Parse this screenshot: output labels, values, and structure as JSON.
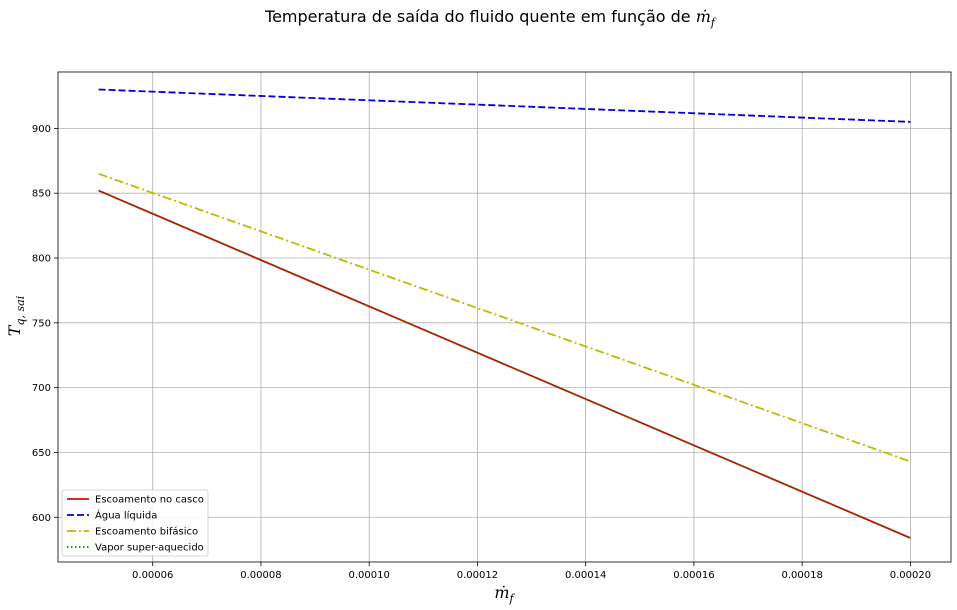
{
  "chart_data": {
    "type": "line",
    "title": "Temperatura de saída do fluido quente em função de",
    "title_math": "ṁ",
    "title_math_sub": "f",
    "xlabel_main": "ṁ",
    "xlabel_sub": "f",
    "ylabel_main": "T",
    "ylabel_sub": "q, sai",
    "xlim": [
      4.25e-05,
      0.0002075
    ],
    "ylim": [
      565.5,
      943.5
    ],
    "xticks": [
      6e-05,
      8e-05,
      0.0001,
      0.00012,
      0.00014,
      0.00016,
      0.00018,
      0.0002
    ],
    "xtick_labels": [
      "0.00006",
      "0.00008",
      "0.00010",
      "0.00012",
      "0.00014",
      "0.00016",
      "0.00018",
      "0.00020"
    ],
    "yticks": [
      600,
      650,
      700,
      750,
      800,
      850,
      900
    ],
    "ytick_labels": [
      "600",
      "650",
      "700",
      "750",
      "800",
      "850",
      "900"
    ],
    "grid": true,
    "legend_position": "lower-left",
    "series": [
      {
        "name": "Escoamento no casco",
        "color": "#cc1100",
        "style": "solid",
        "x": [
          5e-05,
          0.0002
        ],
        "y": [
          852,
          584
        ]
      },
      {
        "name": "Água líquida",
        "color": "#0000dd",
        "style": "dashed",
        "x": [
          5e-05,
          0.0002
        ],
        "y": [
          930,
          905
        ]
      },
      {
        "name": "Escoamento bifásico",
        "color": "#bbbb00",
        "style": "dashdot",
        "x": [
          5e-05,
          0.0002
        ],
        "y": [
          865,
          643
        ]
      },
      {
        "name": "Vapor super-aquecido",
        "color": "#008800",
        "style": "dotted",
        "x": [
          5e-05,
          0.0002
        ],
        "y": [
          852,
          584
        ]
      }
    ]
  }
}
